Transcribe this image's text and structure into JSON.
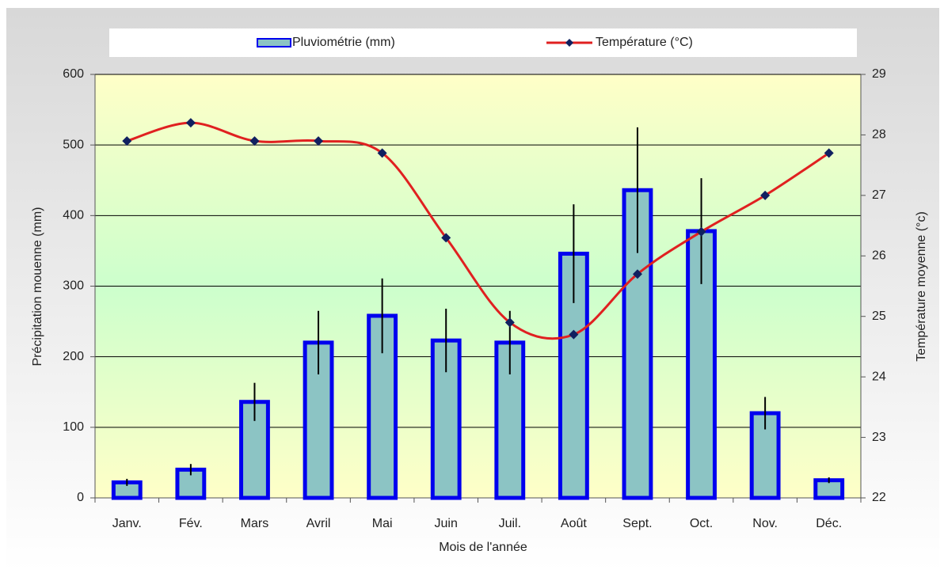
{
  "chart_data": {
    "type": "bar_line",
    "legend": "top",
    "x_label": "Mois de l'année",
    "y_label": "Précipitation mouenne (mm)",
    "y2_label": "Température moyenne (°c)",
    "categories": [
      "Janv.",
      "Fév.",
      "Mars",
      "Avril",
      "Mai",
      "Juin",
      "Juil.",
      "Août",
      "Sept.",
      "Oct.",
      "Nov.",
      "Déc."
    ],
    "series": [
      {
        "name": "Pluviométrie (mm)",
        "type": "bar",
        "color": "#0000ee",
        "fill": "#8cc4c4",
        "values": [
          22,
          40,
          136,
          220,
          258,
          223,
          220,
          346,
          436,
          378,
          120,
          25
        ],
        "errors": [
          5,
          8,
          27,
          45,
          53,
          45,
          45,
          70,
          89,
          75,
          23,
          4
        ]
      },
      {
        "name": "Température (°C)",
        "type": "line",
        "color": "#e02020",
        "marker_color": "#102060",
        "axis": "y2",
        "values": [
          27.9,
          28.2,
          27.9,
          27.9,
          27.7,
          26.3,
          24.9,
          24.7,
          25.7,
          26.4,
          27.0,
          27.7
        ]
      }
    ],
    "ylim": [
      0,
      600
    ],
    "yticks": [
      0,
      100,
      200,
      300,
      400,
      500,
      600
    ],
    "y2lim": [
      22,
      29
    ],
    "y2ticks": [
      22,
      23,
      24,
      25,
      26,
      27,
      28,
      29
    ],
    "grid": true
  }
}
